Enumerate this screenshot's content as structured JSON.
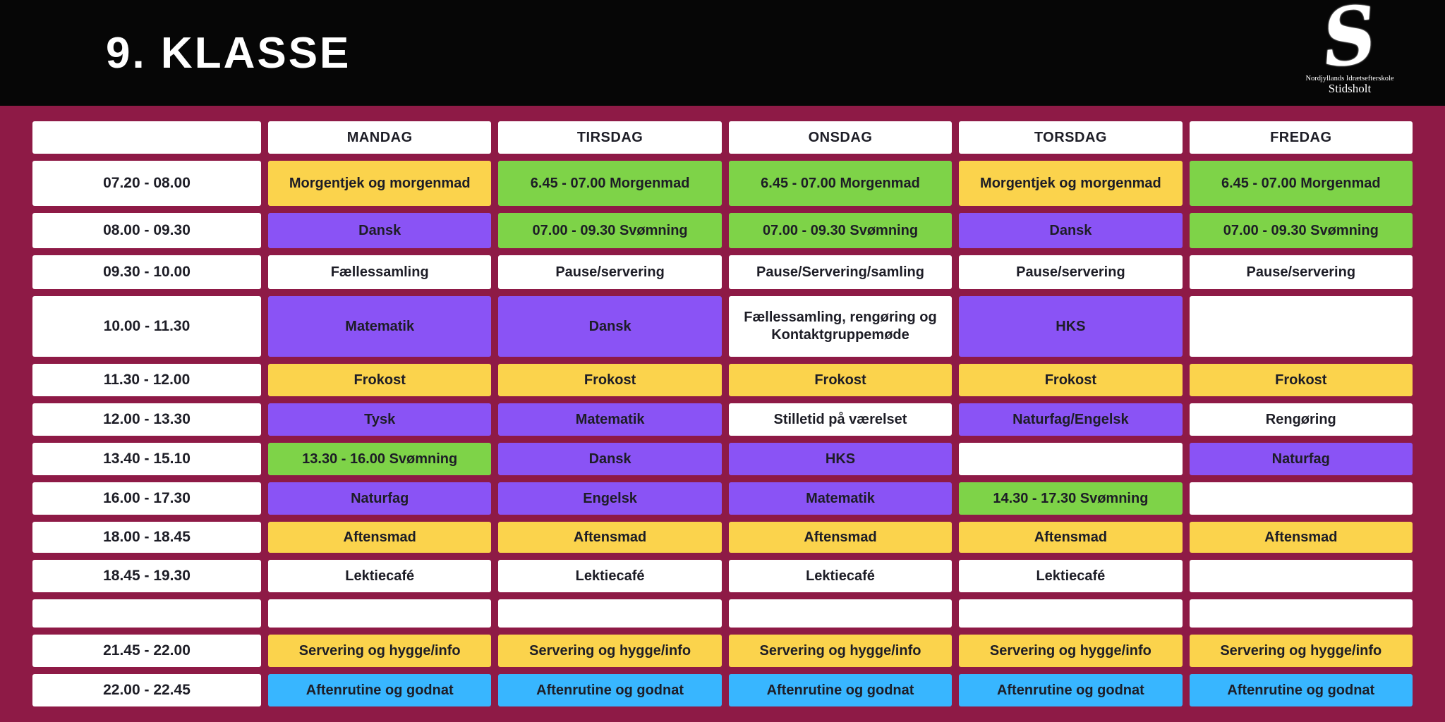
{
  "header": {
    "title": "9. KLASSE",
    "logo": {
      "letter": "S",
      "line1": "Nordjyllands Idrætsefterskole",
      "line2": "Stidsholt"
    }
  },
  "colors": {
    "background_maroon": "#8e1a46",
    "banner_black": "#060606",
    "white": "#ffffff",
    "yellow": "#fbd34c",
    "green": "#7ed348",
    "purple": "#8a53f5",
    "blue": "#38b6ff",
    "text_dark": "#1d1d26"
  },
  "timetable": {
    "days": [
      "MANDAG",
      "TIRSDAG",
      "ONSDAG",
      "TORSDAG",
      "FREDAG"
    ],
    "rows": [
      {
        "time": "07.20 - 08.00",
        "cells": [
          {
            "text": "Morgentjek og morgenmad",
            "color": "yellow"
          },
          {
            "text": "6.45 - 07.00 Morgenmad",
            "color": "green"
          },
          {
            "text": "6.45 - 07.00 Morgenmad",
            "color": "green"
          },
          {
            "text": "Morgentjek og morgenmad",
            "color": "yellow"
          },
          {
            "text": "6.45 - 07.00 Morgenmad",
            "color": "green"
          }
        ]
      },
      {
        "time": "08.00 - 09.30",
        "cells": [
          {
            "text": "Dansk",
            "color": "purple"
          },
          {
            "text": "07.00 - 09.30 Svømning",
            "color": "green"
          },
          {
            "text": "07.00 - 09.30 Svømning",
            "color": "green"
          },
          {
            "text": "Dansk",
            "color": "purple"
          },
          {
            "text": "07.00 - 09.30 Svømning",
            "color": "green"
          }
        ]
      },
      {
        "time": "09.30 - 10.00",
        "cells": [
          {
            "text": "Fællessamling",
            "color": "white"
          },
          {
            "text": "Pause/servering",
            "color": "white"
          },
          {
            "text": "Pause/Servering/samling",
            "color": "white"
          },
          {
            "text": "Pause/servering",
            "color": "white"
          },
          {
            "text": "Pause/servering",
            "color": "white"
          }
        ]
      },
      {
        "time": "10.00 - 11.30",
        "cells": [
          {
            "text": "Matematik",
            "color": "purple"
          },
          {
            "text": "Dansk",
            "color": "purple"
          },
          {
            "text": "Fællessamling, rengøring og Kontaktgruppemøde",
            "color": "white"
          },
          {
            "text": "HKS",
            "color": "purple"
          },
          {
            "text": "",
            "color": "white"
          }
        ]
      },
      {
        "time": "11.30 - 12.00",
        "cells": [
          {
            "text": "Frokost",
            "color": "yellow"
          },
          {
            "text": "Frokost",
            "color": "yellow"
          },
          {
            "text": "Frokost",
            "color": "yellow"
          },
          {
            "text": "Frokost",
            "color": "yellow"
          },
          {
            "text": "Frokost",
            "color": "yellow"
          }
        ]
      },
      {
        "time": "12.00 - 13.30",
        "cells": [
          {
            "text": "Tysk",
            "color": "purple"
          },
          {
            "text": "Matematik",
            "color": "purple"
          },
          {
            "text": "Stilletid på værelset",
            "color": "white"
          },
          {
            "text": "Naturfag/Engelsk",
            "color": "purple"
          },
          {
            "text": "Rengøring",
            "color": "white"
          }
        ]
      },
      {
        "time": "13.40 - 15.10",
        "cells": [
          {
            "text": "13.30 - 16.00 Svømning",
            "color": "green"
          },
          {
            "text": "Dansk",
            "color": "purple"
          },
          {
            "text": "HKS",
            "color": "purple"
          },
          {
            "text": "",
            "color": "white"
          },
          {
            "text": "Naturfag",
            "color": "purple"
          }
        ]
      },
      {
        "time": "16.00 - 17.30",
        "cells": [
          {
            "text": "Naturfag",
            "color": "purple"
          },
          {
            "text": "Engelsk",
            "color": "purple"
          },
          {
            "text": "Matematik",
            "color": "purple"
          },
          {
            "text": "14.30 - 17.30 Svømning",
            "color": "green"
          },
          {
            "text": "",
            "color": "white"
          }
        ]
      },
      {
        "time": "18.00 - 18.45",
        "cells": [
          {
            "text": "Aftensmad",
            "color": "yellow"
          },
          {
            "text": "Aftensmad",
            "color": "yellow"
          },
          {
            "text": "Aftensmad",
            "color": "yellow"
          },
          {
            "text": "Aftensmad",
            "color": "yellow"
          },
          {
            "text": "Aftensmad",
            "color": "yellow"
          }
        ]
      },
      {
        "time": "18.45 - 19.30",
        "cells": [
          {
            "text": "Lektiecafé",
            "color": "white"
          },
          {
            "text": "Lektiecafé",
            "color": "white"
          },
          {
            "text": "Lektiecafé",
            "color": "white"
          },
          {
            "text": "Lektiecafé",
            "color": "white"
          },
          {
            "text": "",
            "color": "white"
          }
        ]
      },
      {
        "time": "",
        "cells": [
          {
            "text": "",
            "color": "white"
          },
          {
            "text": "",
            "color": "white"
          },
          {
            "text": "",
            "color": "white"
          },
          {
            "text": "",
            "color": "white"
          },
          {
            "text": "",
            "color": "white"
          }
        ]
      },
      {
        "time": "21.45 - 22.00",
        "cells": [
          {
            "text": "Servering og hygge/info",
            "color": "yellow"
          },
          {
            "text": "Servering og hygge/info",
            "color": "yellow"
          },
          {
            "text": "Servering og hygge/info",
            "color": "yellow"
          },
          {
            "text": "Servering og hygge/info",
            "color": "yellow"
          },
          {
            "text": "Servering og hygge/info",
            "color": "yellow"
          }
        ]
      },
      {
        "time": "22.00 - 22.45",
        "cells": [
          {
            "text": "Aftenrutine og godnat",
            "color": "blue"
          },
          {
            "text": "Aftenrutine og godnat",
            "color": "blue"
          },
          {
            "text": "Aftenrutine og godnat",
            "color": "blue"
          },
          {
            "text": "Aftenrutine og godnat",
            "color": "blue"
          },
          {
            "text": "Aftenrutine og godnat",
            "color": "blue"
          }
        ]
      }
    ]
  }
}
